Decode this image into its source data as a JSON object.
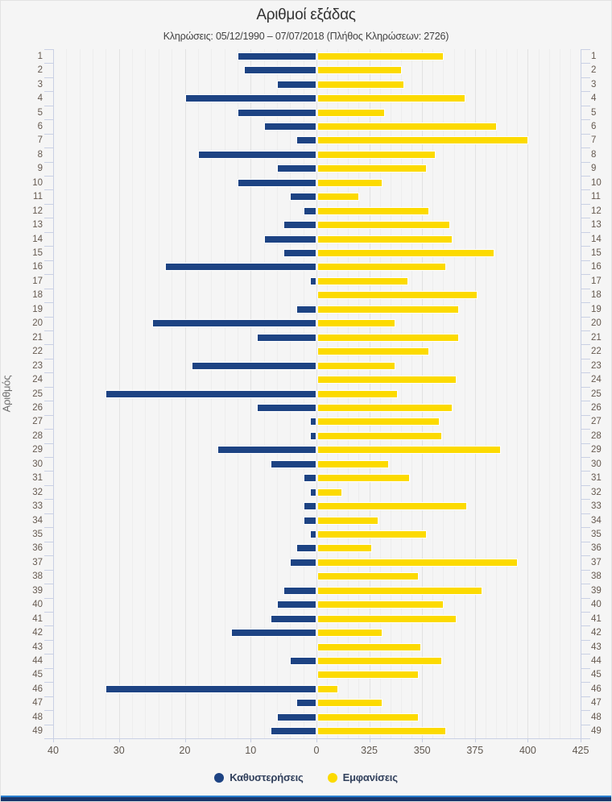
{
  "header": {
    "title": "Αριθμοί εξάδας",
    "subtitle": "Κληρώσεις: 05/12/1990 – 07/07/2018 (Πλήθος Κληρώσεων: 2726)"
  },
  "y_axis_title": "Αριθμός",
  "colors": {
    "delay_bar": "#1d4383",
    "appearance_bar": "#fcda00",
    "axis_line": "#c9d0e4",
    "grid_major": "#e2e2e2",
    "grid_minor": "#ededed",
    "category_label": "#665a50",
    "footer_bar": "#18366b",
    "footer_border": "#2a80d0",
    "background": "#f5f5f5"
  },
  "legend": [
    {
      "label": "Καθυστερήσεις",
      "color": "#1d4383"
    },
    {
      "label": "Εμφανίσεις",
      "color": "#fcda00"
    }
  ],
  "chart_data": {
    "type": "bar",
    "title": "Αριθμοί εξάδας",
    "subtitle": "Κληρώσεις: 05/12/1990 – 07/07/2018 (Πλήθος Κληρώσεων: 2726)",
    "orientation": "horizontal-tornado",
    "ylabel": "Αριθμός",
    "grid": true,
    "legend_position": "bottom",
    "categories": [
      1,
      2,
      3,
      4,
      5,
      6,
      7,
      8,
      9,
      10,
      11,
      12,
      13,
      14,
      15,
      16,
      17,
      18,
      19,
      20,
      21,
      22,
      23,
      24,
      25,
      26,
      27,
      28,
      29,
      30,
      31,
      32,
      33,
      34,
      35,
      36,
      37,
      38,
      39,
      40,
      41,
      42,
      43,
      44,
      45,
      46,
      47,
      48,
      49
    ],
    "left_axis": {
      "label": "Καθυστερήσεις",
      "min": 0,
      "max": 40,
      "tick_labels": [
        "40",
        "30",
        "20",
        "10",
        "0"
      ],
      "direction": "left"
    },
    "right_axis": {
      "label": "Εμφανίσεις",
      "min": 300,
      "max": 425,
      "tick_labels": [
        "325",
        "350",
        "375",
        "400",
        "425"
      ],
      "direction": "right"
    },
    "series": [
      {
        "name": "Καθυστερήσεις",
        "color": "#1d4383",
        "values": [
          12,
          11,
          6,
          20,
          12,
          8,
          3,
          18,
          6,
          12,
          4,
          2,
          5,
          8,
          5,
          23,
          1,
          0,
          3,
          25,
          9,
          0,
          19,
          0,
          32,
          9,
          1,
          1,
          15,
          7,
          2,
          1,
          2,
          2,
          1,
          3,
          4,
          0,
          5,
          6,
          7,
          13,
          0,
          4,
          0,
          32,
          3,
          6,
          7
        ]
      },
      {
        "name": "Εμφανίσεις",
        "color": "#fcda00",
        "values": [
          360,
          340,
          341,
          370,
          332,
          385,
          400,
          356,
          352,
          331,
          320,
          353,
          363,
          364,
          384,
          361,
          343,
          376,
          367,
          337,
          367,
          353,
          337,
          366,
          338,
          364,
          358,
          359,
          387,
          334,
          344,
          312,
          371,
          329,
          352,
          326,
          395,
          348,
          378,
          360,
          366,
          331,
          349,
          359,
          348,
          310,
          331,
          348,
          361
        ]
      }
    ]
  }
}
